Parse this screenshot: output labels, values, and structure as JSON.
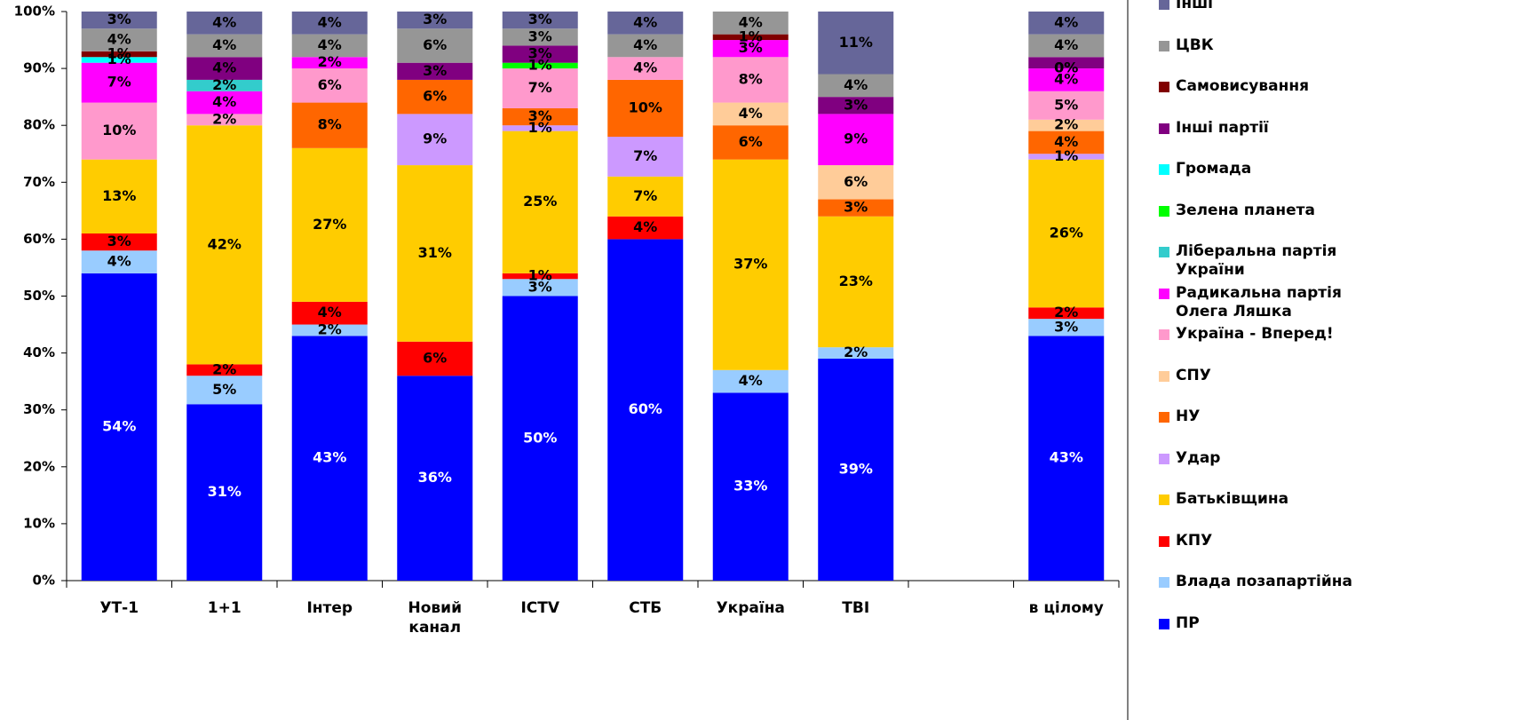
{
  "chart_data": {
    "type": "stacked_bar",
    "categories": [
      "УТ-1",
      "1+1",
      "Інтер",
      "Новий канал",
      "ICTV",
      "СТБ",
      "Україна",
      "ТВІ",
      null,
      "в цілому"
    ],
    "ylim": [
      0,
      100
    ],
    "yticks": [
      {
        "value": 0,
        "label": "0%"
      },
      {
        "value": 10,
        "label": "10%"
      },
      {
        "value": 20,
        "label": "20%"
      },
      {
        "value": 30,
        "label": "30%"
      },
      {
        "value": 40,
        "label": "40%"
      },
      {
        "value": 50,
        "label": "50%"
      },
      {
        "value": 60,
        "label": "60%"
      },
      {
        "value": 70,
        "label": "70%"
      },
      {
        "value": 80,
        "label": "80%"
      },
      {
        "value": 90,
        "label": "90%"
      },
      {
        "value": 100,
        "label": "100%"
      }
    ],
    "series": [
      {
        "name": "ПР",
        "color": "#0000ff",
        "values": [
          54,
          31,
          43,
          36,
          50,
          60,
          33,
          39,
          null,
          43
        ],
        "value_labels": [
          "54%",
          "31%",
          "43%",
          "36%",
          "50%",
          "60%",
          "33%",
          "39%",
          null,
          "43%"
        ]
      },
      {
        "name": "Влада позапартійна",
        "color": "#99ccff",
        "values": [
          4,
          5,
          2,
          0,
          3,
          0,
          4,
          2,
          null,
          3
        ],
        "value_labels": [
          "4%",
          "5%",
          "2%",
          null,
          "3%",
          null,
          "4%",
          "2%",
          null,
          "3%"
        ]
      },
      {
        "name": "КПУ",
        "color": "#ff0000",
        "values": [
          3,
          2,
          4,
          6,
          1,
          4,
          0,
          0,
          null,
          2
        ],
        "value_labels": [
          "3%",
          "2%",
          "4%",
          "6%",
          "1%",
          "4%",
          null,
          null,
          null,
          "2%"
        ]
      },
      {
        "name": "Батьківщина",
        "color": "#ffcc00",
        "values": [
          13,
          42,
          27,
          31,
          25,
          7,
          37,
          23,
          null,
          26
        ],
        "value_labels": [
          "13%",
          "42%",
          "27%",
          "31%",
          "25%",
          "7%",
          "37%",
          "23%",
          null,
          "26%"
        ]
      },
      {
        "name": "Удар",
        "color": "#cc99ff",
        "values": [
          0,
          0,
          0,
          9,
          1,
          7,
          0,
          0,
          null,
          1
        ],
        "value_labels": [
          null,
          null,
          null,
          "9%",
          "1%",
          "7%",
          null,
          null,
          null,
          "1%"
        ]
      },
      {
        "name": "НУ",
        "color": "#ff6600",
        "values": [
          0,
          0,
          8,
          6,
          3,
          10,
          6,
          3,
          null,
          4
        ],
        "value_labels": [
          null,
          null,
          "8%",
          "6%",
          "3%",
          "10%",
          "6%",
          "3%",
          null,
          "4%"
        ]
      },
      {
        "name": "СПУ",
        "color": "#ffcc99",
        "values": [
          0,
          0,
          0,
          0,
          0,
          0,
          4,
          6,
          null,
          2
        ],
        "value_labels": [
          null,
          null,
          null,
          null,
          null,
          null,
          "4%",
          "6%",
          null,
          "2%"
        ]
      },
      {
        "name": "Україна - Вперед!",
        "color": "#ff99cc",
        "values": [
          10,
          2,
          6,
          0,
          7,
          4,
          8,
          0,
          null,
          5
        ],
        "value_labels": [
          "10%",
          "2%",
          "6%",
          null,
          "7%",
          "4%",
          "8%",
          null,
          null,
          "5%"
        ]
      },
      {
        "name": "Радикальна партія Олега Ляшка",
        "color": "#ff00ff",
        "values": [
          7,
          4,
          2,
          0,
          0,
          0,
          3,
          9,
          null,
          4
        ],
        "value_labels": [
          "7%",
          "4%",
          "2%",
          null,
          null,
          null,
          "3%",
          "9%",
          null,
          "4%"
        ]
      },
      {
        "name": "Ліберальна партія України",
        "color": "#33cccc",
        "values": [
          0,
          2,
          0,
          0,
          0,
          0,
          0,
          0,
          null,
          0
        ],
        "value_labels": [
          null,
          "2%",
          null,
          null,
          null,
          null,
          null,
          null,
          null,
          "0%"
        ]
      },
      {
        "name": "Зелена планета",
        "color": "#00ff00",
        "values": [
          0,
          0,
          0,
          0,
          1,
          0,
          0,
          0,
          null,
          0
        ],
        "value_labels": [
          null,
          null,
          null,
          null,
          "1%",
          null,
          null,
          null,
          null,
          null
        ]
      },
      {
        "name": "Громада",
        "color": "#00ffff",
        "values": [
          1,
          0,
          0,
          0,
          0,
          0,
          0,
          0,
          null,
          0
        ],
        "value_labels": [
          "1%",
          null,
          null,
          null,
          null,
          null,
          null,
          null,
          null,
          "0%"
        ]
      },
      {
        "name": "Інші партії",
        "color": "#800080",
        "values": [
          0,
          4,
          0,
          3,
          3,
          0,
          0,
          3,
          null,
          2
        ],
        "value_labels": [
          null,
          "4%",
          null,
          "3%",
          "3%",
          null,
          null,
          "3%",
          null,
          null
        ]
      },
      {
        "name": "Самовисування",
        "color": "#800000",
        "values": [
          1,
          0,
          0,
          0,
          0,
          0,
          1,
          0,
          null,
          0
        ],
        "value_labels": [
          "1%",
          null,
          null,
          null,
          null,
          null,
          "1%",
          null,
          null,
          null
        ]
      },
      {
        "name": "ЦВК",
        "color": "#969696",
        "values": [
          4,
          4,
          4,
          6,
          3,
          4,
          4,
          4,
          null,
          4
        ],
        "value_labels": [
          "4%",
          "4%",
          "4%",
          "6%",
          "3%",
          "4%",
          "4%",
          "4%",
          null,
          "4%"
        ]
      },
      {
        "name": "Інші",
        "color": "#666699",
        "values": [
          3,
          4,
          4,
          3,
          3,
          4,
          0,
          11,
          null,
          4
        ],
        "value_labels": [
          "3%",
          "4%",
          "4%",
          "3%",
          "3%",
          "4%",
          null,
          "11%",
          null,
          "4%"
        ]
      }
    ]
  }
}
